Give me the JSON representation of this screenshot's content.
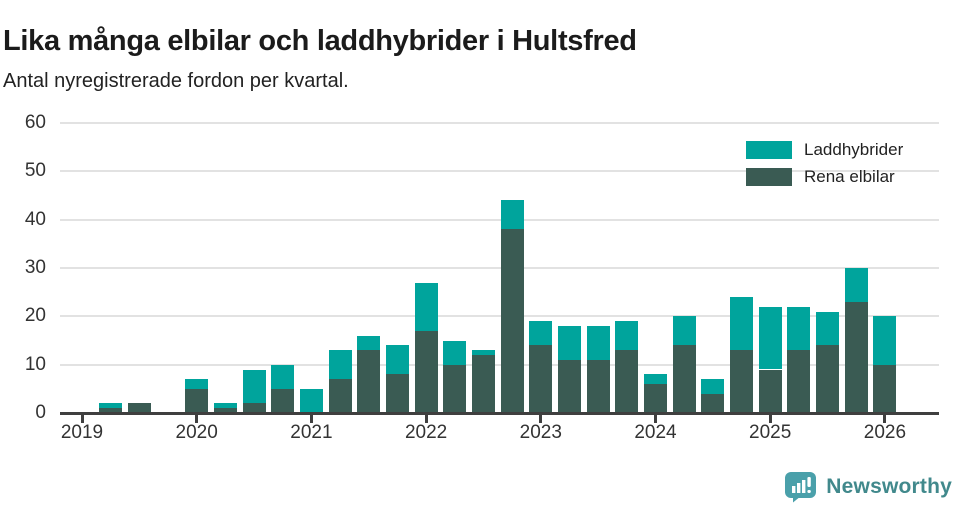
{
  "header": {
    "title": "Lika många elbilar och laddhybrider i Hultsfred",
    "subtitle": "Antal nyregistrerade fordon per kvartal."
  },
  "chart_data": {
    "type": "bar",
    "stacked": true,
    "title": "Lika många elbilar och laddhybrider i Hultsfred",
    "subtitle": "Antal nyregistrerade fordon per kvartal.",
    "xlabel": "",
    "ylabel": "",
    "ylim": [
      0,
      60
    ],
    "yticks": [
      0,
      10,
      20,
      30,
      40,
      50,
      60
    ],
    "grid": "horizontal",
    "legend_position": "top-right",
    "x_year_ticks": [
      "2019",
      "2020",
      "2021",
      "2022",
      "2023",
      "2024",
      "2025",
      "2026"
    ],
    "categories": [
      "2019 Q1",
      "2019 Q2",
      "2019 Q3",
      "2019 Q4",
      "2020 Q1",
      "2020 Q2",
      "2020 Q3",
      "2020 Q4",
      "2021 Q1",
      "2021 Q2",
      "2021 Q3",
      "2021 Q4",
      "2022 Q1",
      "2022 Q2",
      "2022 Q3",
      "2022 Q4",
      "2023 Q1",
      "2023 Q2",
      "2023 Q3",
      "2023 Q4",
      "2024 Q1",
      "2024 Q2",
      "2024 Q3",
      "2024 Q4",
      "2025 Q1",
      "2025 Q2",
      "2025 Q3",
      "2025 Q4",
      "2026 Q1"
    ],
    "series": [
      {
        "name": "Laddhybrider",
        "color": "#00a49c",
        "values": [
          0,
          1,
          0,
          0,
          2,
          1,
          7,
          5,
          5,
          6,
          3,
          6,
          10,
          5,
          1,
          6,
          5,
          7,
          7,
          6,
          2,
          6,
          3,
          11,
          13,
          9,
          7,
          7,
          10
        ]
      },
      {
        "name": "Rena elbilar",
        "color": "#3a5b53",
        "values": [
          0,
          1,
          2,
          0,
          5,
          1,
          2,
          5,
          0,
          7,
          13,
          8,
          17,
          10,
          12,
          38,
          14,
          11,
          11,
          13,
          6,
          14,
          4,
          13,
          9,
          13,
          14,
          23,
          10
        ]
      }
    ]
  },
  "legend": {
    "items": [
      {
        "label": "Laddhybrider",
        "color": "#00a49c"
      },
      {
        "label": "Rena elbilar",
        "color": "#3a5b53"
      }
    ]
  },
  "footer": {
    "brand": "Newsworthy"
  },
  "colors": {
    "axis": "#3f3f3f",
    "gridline": "#e2e2e2",
    "brand_text": "#41898c",
    "brand_icon": "#4aa0aa"
  }
}
